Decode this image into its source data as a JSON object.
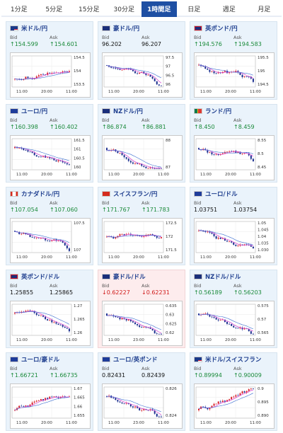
{
  "tabs": [
    {
      "label": "1分足",
      "active": false
    },
    {
      "label": "5分足",
      "active": false
    },
    {
      "label": "15分足",
      "active": false
    },
    {
      "label": "30分足",
      "active": false
    },
    {
      "label": "1時間足",
      "active": true
    },
    {
      "label": "日足",
      "active": false
    },
    {
      "label": "週足",
      "active": false
    },
    {
      "label": "月足",
      "active": false
    }
  ],
  "labels": {
    "bid": "Bid",
    "ask": "Ask"
  },
  "colors": {
    "up": "#1a8a3a",
    "down": "#d01b1b",
    "tab_active": "#1e4fa3",
    "ma_line": "#d94fd4",
    "ma_line2": "#3b6fd1",
    "candle_up": "#d8222a",
    "candle_down": "#1b2f8f"
  },
  "cards": [
    {
      "pair": "米ドル/円",
      "flag": "us",
      "dir": "up",
      "bid": "154.599",
      "ask": "154.601",
      "ticks": [
        "154.5",
        "154",
        "153.5"
      ],
      "xlabels": [
        "11:00",
        "20:00",
        "11:00"
      ],
      "trend": "up",
      "seed": 1
    },
    {
      "pair": "豪ドル/円",
      "flag": "au",
      "dir": "none",
      "bid": "96.202",
      "ask": "96.207",
      "ticks": [
        "97.5",
        "97",
        "96.5",
        "96"
      ],
      "xlabels": [
        "11:00",
        "20:00",
        "11:00"
      ],
      "trend": "down",
      "seed": 2
    },
    {
      "pair": "英ポンド/円",
      "flag": "uk",
      "dir": "up",
      "bid": "194.576",
      "ask": "194.583",
      "ticks": [
        "195.5",
        "195",
        "194.5"
      ],
      "xlabels": [
        "11:00",
        "20:00",
        "11:00"
      ],
      "trend": "down",
      "seed": 3
    },
    {
      "pair": "ユーロ/円",
      "flag": "eu",
      "dir": "up",
      "bid": "160.398",
      "ask": "160.402",
      "ticks": [
        "161.5",
        "161",
        "160.5",
        "160"
      ],
      "xlabels": [
        "11:00",
        "20:00",
        "11:00"
      ],
      "trend": "down",
      "seed": 4
    },
    {
      "pair": "NZドル/円",
      "flag": "nz",
      "dir": "up",
      "bid": "86.874",
      "ask": "86.881",
      "ticks": [
        "88",
        "87"
      ],
      "xlabels": [
        "11:00",
        "20:00",
        "11:00"
      ],
      "trend": "down",
      "seed": 5
    },
    {
      "pair": "ランド/円",
      "flag": "za",
      "dir": "up",
      "bid": "8.450",
      "ask": "8.459",
      "ticks": [
        "8.55",
        "8.5",
        "8.45"
      ],
      "xlabels": [
        "11:00",
        "20:00",
        "11:00"
      ],
      "trend": "down",
      "seed": 6
    },
    {
      "pair": "カナダドル/円",
      "flag": "ca",
      "dir": "up",
      "bid": "107.054",
      "ask": "107.060",
      "ticks": [
        "107.5",
        "107"
      ],
      "xlabels": [
        "11:00",
        "20:00",
        "11:00"
      ],
      "trend": "down",
      "seed": 7
    },
    {
      "pair": "スイスフラン/円",
      "flag": "ch",
      "dir": "up",
      "bid": "171.767",
      "ask": "171.783",
      "ticks": [
        "172.5",
        "172",
        "171.5"
      ],
      "xlabels": [
        "11:00",
        "20:00",
        "11:00"
      ],
      "trend": "flat",
      "seed": 8
    },
    {
      "pair": "ユーロ/ドル",
      "flag": "eu",
      "dir": "none",
      "bid": "1.03751",
      "ask": "1.03754",
      "ticks": [
        "1.05",
        "1.045",
        "1.04",
        "1.035",
        "1.030"
      ],
      "xlabels": [
        "11:00",
        "20:00",
        "11:00"
      ],
      "trend": "down",
      "seed": 9
    },
    {
      "pair": "英ポンド/ドル",
      "flag": "uk",
      "dir": "none",
      "bid": "1.25855",
      "ask": "1.25865",
      "ticks": [
        "1.27",
        "1.265",
        "1.26"
      ],
      "xlabels": [
        "11:00",
        "20:00",
        "11:00"
      ],
      "trend": "down",
      "seed": 10
    },
    {
      "pair": "豪ドル/ドル",
      "flag": "au",
      "dir": "down",
      "bid": "0.62227",
      "ask": "0.62231",
      "ticks": [
        "0.635",
        "0.63",
        "0.625",
        "0.62"
      ],
      "xlabels": [
        "11:00",
        "23:00",
        "11:00"
      ],
      "trend": "down",
      "seed": 11,
      "negative": true
    },
    {
      "pair": "NZドル/ドル",
      "flag": "nz",
      "dir": "up",
      "bid": "0.56189",
      "ask": "0.56203",
      "ticks": [
        "0.575",
        "0.57",
        "0.565"
      ],
      "xlabels": [
        "11:00",
        "20:00",
        "11:00"
      ],
      "trend": "down",
      "seed": 12
    },
    {
      "pair": "ユーロ/豪ドル",
      "flag": "eu",
      "dir": "up",
      "bid": "1.66721",
      "ask": "1.66735",
      "ticks": [
        "1.67",
        "1.665",
        "1.66",
        "1.655"
      ],
      "xlabels": [
        "11:00",
        "20:00",
        "11:00"
      ],
      "trend": "up",
      "seed": 13
    },
    {
      "pair": "ユーロ/英ポンド",
      "flag": "eu",
      "dir": "none",
      "bid": "0.82431",
      "ask": "0.82439",
      "ticks": [
        "0.826",
        "0.824"
      ],
      "xlabels": [
        "11:00",
        "23:00",
        "11:00"
      ],
      "trend": "down",
      "seed": 14
    },
    {
      "pair": "米ドル/スイスフラン",
      "flag": "us",
      "dir": "up",
      "bid": "0.89994",
      "ask": "0.90009",
      "ticks": [
        "0.9",
        "0.895",
        "0.890"
      ],
      "xlabels": [
        "11:00",
        "20:00",
        "11:00"
      ],
      "trend": "up",
      "seed": 15
    }
  ]
}
